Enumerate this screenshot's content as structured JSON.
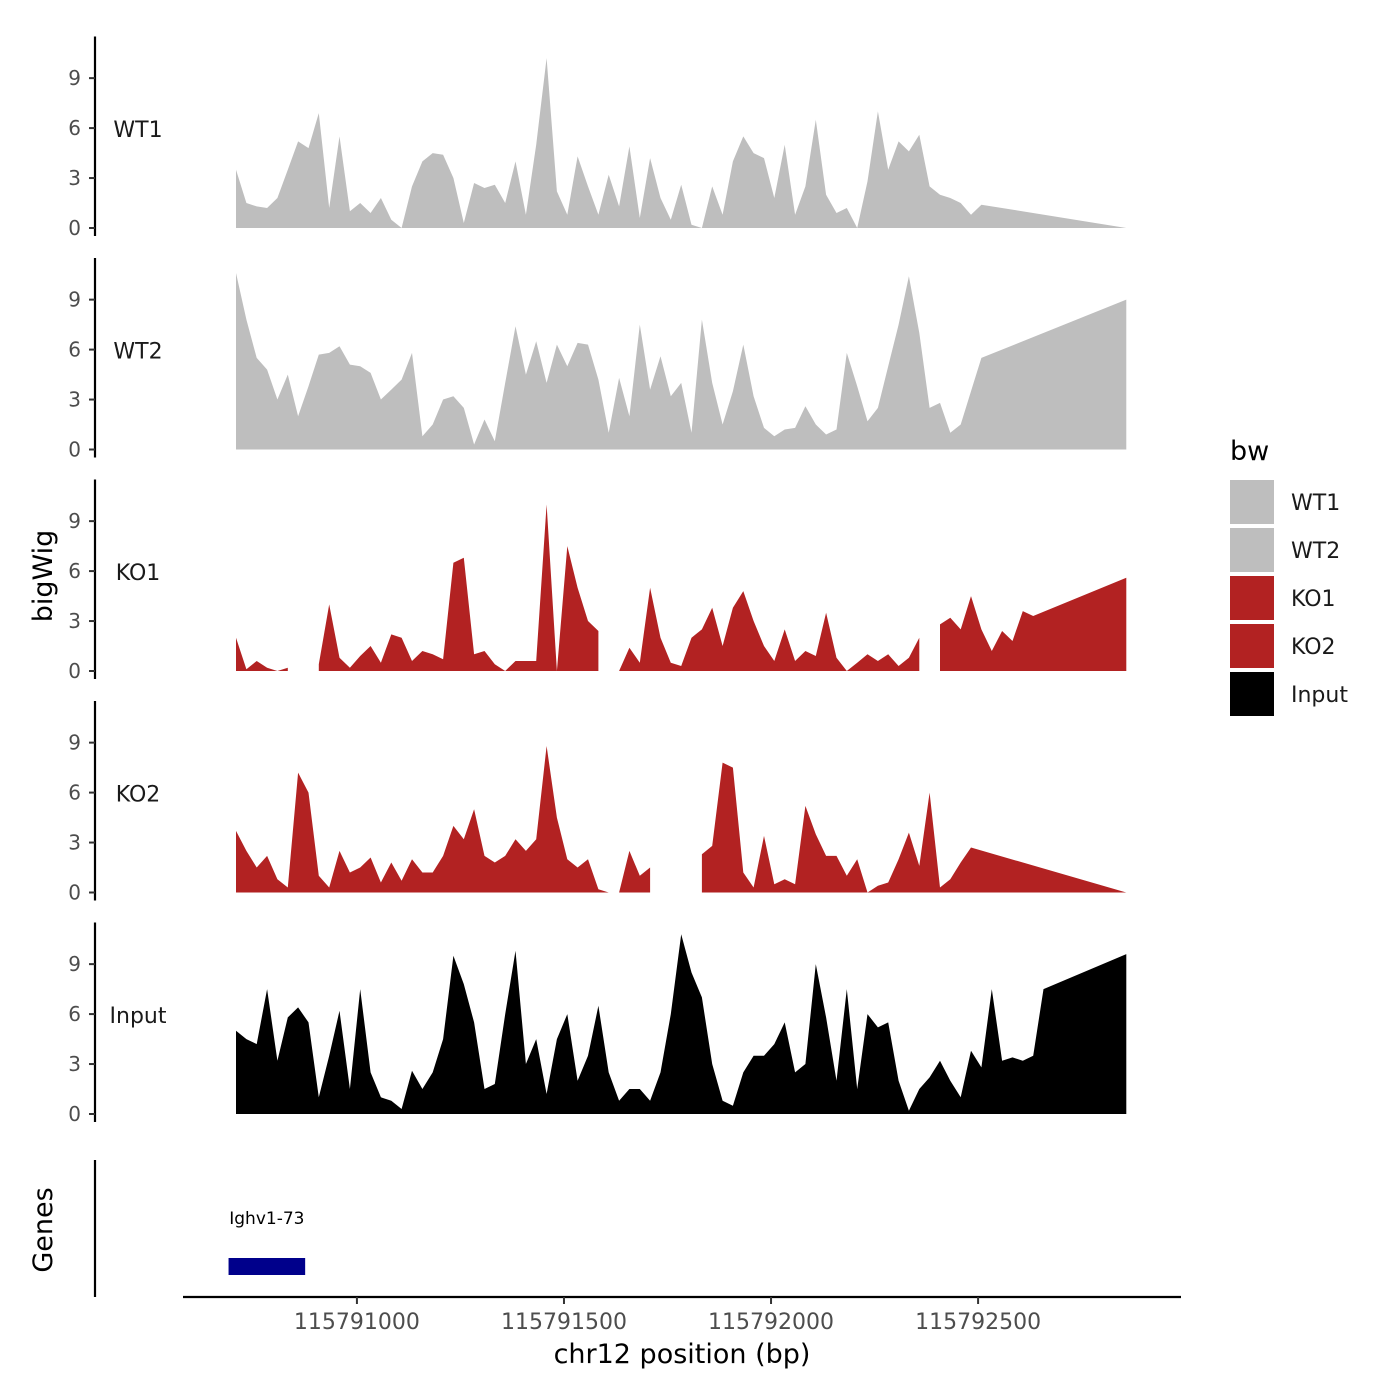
{
  "chart_data": {
    "type": "area",
    "xlabel": "chr12 position (bp)",
    "ylabel": "bigWig",
    "xlim": [
      115790580,
      115792990
    ],
    "x_ticks": [
      115791000,
      115791500,
      115792000,
      115792500
    ],
    "x_tick_labels": [
      "115791000",
      "115791500",
      "115792000",
      "115792500"
    ],
    "ylim": [
      0,
      11.5
    ],
    "y_ticks": [
      0,
      3,
      6,
      9
    ],
    "y_tick_labels": [
      "0",
      "3",
      "6",
      "9"
    ],
    "tracks": [
      {
        "name": "WT1",
        "label": "WT1",
        "color": "#BEBEBE",
        "x_start": 115790708,
        "x_end": 115792858,
        "x_step": 25,
        "values": [
          3.5,
          1.5,
          1.3,
          1.2,
          1.8,
          3.5,
          5.2,
          4.8,
          6.9,
          1.2,
          5.5,
          1.0,
          1.5,
          0.9,
          1.8,
          0.5,
          0.0,
          2.5,
          4.0,
          4.5,
          4.4,
          3.0,
          0.3,
          2.7,
          2.4,
          2.6,
          1.5,
          4.0,
          0.8,
          5.0,
          10.2,
          2.2,
          0.8,
          4.3,
          2.5,
          0.8,
          3.2,
          1.3,
          4.9,
          0.6,
          4.2,
          1.8,
          0.5,
          2.6,
          0.2,
          0.0,
          2.5,
          0.8,
          4.0,
          5.5,
          4.5,
          4.2,
          1.8,
          5.0,
          0.8,
          2.5,
          6.5,
          2.0,
          0.9,
          1.2,
          0.0,
          2.8,
          7.0,
          3.5,
          5.2,
          4.6,
          5.6,
          2.5,
          2.0,
          1.8,
          1.5,
          0.8,
          1.4,
          0.0
        ],
        "gaps": []
      },
      {
        "name": "WT2",
        "label": "WT2",
        "color": "#BEBEBE",
        "x_start": 115790708,
        "x_end": 115792858,
        "x_step": 25,
        "values": [
          10.6,
          7.8,
          5.5,
          4.8,
          3.0,
          4.5,
          2.0,
          3.8,
          5.7,
          5.8,
          6.2,
          5.1,
          5.0,
          4.6,
          3.0,
          3.6,
          4.2,
          5.8,
          0.8,
          1.5,
          3.0,
          3.2,
          2.5,
          0.3,
          1.8,
          0.5,
          4.0,
          7.4,
          4.5,
          6.5,
          4.0,
          6.3,
          5.0,
          6.4,
          6.3,
          4.2,
          1.0,
          4.3,
          2.0,
          7.5,
          3.6,
          5.6,
          3.2,
          4.0,
          1.0,
          7.8,
          4.0,
          1.5,
          3.5,
          6.3,
          3.2,
          1.3,
          0.8,
          1.2,
          1.3,
          2.6,
          1.5,
          0.9,
          1.2,
          5.8,
          3.8,
          1.7,
          2.5,
          5.0,
          7.5,
          10.4,
          7.0,
          2.5,
          2.8,
          1.0,
          1.5,
          3.5,
          5.5,
          9.0
        ],
        "gaps": []
      },
      {
        "name": "KO1",
        "label": "KO1",
        "color": "#B22222",
        "x_start": 115790708,
        "x_end": 115792858,
        "x_step": 25,
        "values": [
          2.0,
          0.1,
          0.6,
          0.2,
          0.0,
          0.2,
          5.0,
          1.0,
          0.4,
          4.0,
          0.8,
          0.2,
          0.9,
          1.5,
          0.5,
          2.2,
          2.0,
          0.6,
          1.2,
          1.0,
          0.7,
          6.5,
          6.8,
          1.0,
          1.2,
          0.4,
          0.0,
          0.6,
          0.6,
          0.6,
          10.0,
          0.0,
          7.5,
          5.0,
          3.0,
          2.4,
          0.8,
          0.0,
          1.4,
          0.5,
          5.0,
          2.0,
          0.5,
          0.3,
          2.0,
          2.5,
          3.8,
          1.5,
          3.8,
          4.8,
          3.0,
          1.5,
          0.6,
          2.5,
          0.6,
          1.2,
          0.9,
          3.5,
          0.8,
          0.0,
          0.5,
          1.0,
          0.6,
          1.0,
          0.3,
          0.8,
          2.0,
          3.0,
          2.8,
          3.2,
          2.5,
          4.5,
          2.5,
          1.2,
          2.4,
          1.8,
          3.6,
          3.3,
          5.6
        ],
        "gaps": [
          [
            115790850,
            115790885
          ],
          [
            115791600,
            115791620
          ],
          [
            115791765,
            115791780
          ],
          [
            115792085,
            115792100
          ],
          [
            115792380,
            115792400
          ]
        ]
      },
      {
        "name": "KO2",
        "label": "KO2",
        "color": "#B22222",
        "x_start": 115790708,
        "x_end": 115792858,
        "x_step": 25,
        "values": [
          3.7,
          2.5,
          1.5,
          2.2,
          0.8,
          0.3,
          7.2,
          6.0,
          1.0,
          0.3,
          2.5,
          1.2,
          1.5,
          2.1,
          0.6,
          1.8,
          0.7,
          2.0,
          1.2,
          1.2,
          2.2,
          4.0,
          3.2,
          5.0,
          2.2,
          1.8,
          2.2,
          3.2,
          2.5,
          3.2,
          8.8,
          4.5,
          2.0,
          1.5,
          2.0,
          0.2,
          0.0,
          0.0,
          2.5,
          1.0,
          1.5,
          1.8,
          1.2,
          3.3,
          0.6,
          2.3,
          2.8,
          7.8,
          7.5,
          1.2,
          0.3,
          3.4,
          0.5,
          0.8,
          0.5,
          5.2,
          3.5,
          2.2,
          2.2,
          1.0,
          2.0,
          0.0,
          0.4,
          0.6,
          2.0,
          3.6,
          1.6,
          6.0,
          0.3,
          0.8,
          1.8,
          2.7,
          0.0
        ],
        "gaps": [
          [
            115791730,
            115791810
          ],
          [
            115792525,
            115792545
          ]
        ]
      },
      {
        "name": "Input",
        "label": "Input",
        "color": "#000000",
        "x_start": 115790708,
        "x_end": 115792858,
        "x_step": 25,
        "values": [
          5.0,
          4.5,
          4.2,
          7.5,
          3.2,
          5.8,
          6.4,
          5.5,
          1.0,
          3.5,
          6.2,
          1.5,
          7.5,
          2.5,
          1.0,
          0.8,
          0.3,
          2.6,
          1.5,
          2.5,
          4.5,
          9.5,
          7.8,
          5.5,
          1.5,
          1.8,
          6.0,
          9.8,
          3.0,
          4.5,
          1.2,
          4.5,
          6.0,
          2.0,
          3.5,
          6.5,
          2.5,
          0.8,
          1.5,
          1.5,
          0.8,
          2.5,
          6.0,
          10.8,
          8.5,
          7.0,
          3.0,
          0.8,
          0.5,
          2.5,
          3.5,
          3.5,
          4.2,
          5.5,
          2.5,
          3.0,
          9.0,
          5.8,
          2.0,
          7.5,
          1.5,
          6.0,
          5.2,
          5.5,
          2.0,
          0.2,
          1.5,
          2.2,
          3.2,
          2.0,
          1.0,
          3.8,
          2.8,
          7.5,
          3.2,
          3.4,
          3.2,
          3.5,
          7.5,
          9.6
        ],
        "gaps": []
      }
    ],
    "legend": {
      "title": "bw",
      "placement": "right",
      "entries": [
        {
          "label": "WT1",
          "color": "#BEBEBE"
        },
        {
          "label": "WT2",
          "color": "#BEBEBE"
        },
        {
          "label": "KO1",
          "color": "#B22222"
        },
        {
          "label": "KO2",
          "color": "#B22222"
        },
        {
          "label": "Input",
          "color": "#000000"
        }
      ]
    },
    "genes_panel": {
      "ylabel": "Genes",
      "genes": [
        {
          "name": "Ighv1-73",
          "start": 115790690,
          "end": 115790875,
          "color": "#00008B"
        }
      ]
    }
  }
}
